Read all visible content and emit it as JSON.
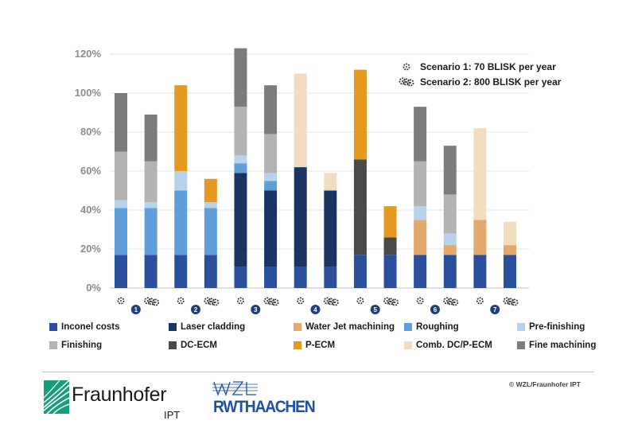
{
  "chart_data": {
    "type": "bar",
    "stacked": true,
    "yaxis": {
      "min": 0,
      "max": 120,
      "ticks": [
        "0%",
        "20%",
        "40%",
        "60%",
        "80%",
        "100%",
        "120%"
      ],
      "tick_values": [
        0,
        20,
        40,
        60,
        80,
        100,
        120
      ]
    },
    "grid": true,
    "groups": [
      {
        "number": "1",
        "bars": [
          "Scenario 1",
          "Scenario 2"
        ]
      },
      {
        "number": "2",
        "bars": [
          "Scenario 1",
          "Scenario 2"
        ]
      },
      {
        "number": "3",
        "bars": [
          "Scenario 1",
          "Scenario 2"
        ]
      },
      {
        "number": "4",
        "bars": [
          "Scenario 1",
          "Scenario 2"
        ]
      },
      {
        "number": "5",
        "bars": [
          "Scenario 1",
          "Scenario 2"
        ]
      },
      {
        "number": "6",
        "bars": [
          "Scenario 1",
          "Scenario 2"
        ]
      },
      {
        "number": "7",
        "bars": [
          "Scenario 1",
          "Scenario 2"
        ]
      }
    ],
    "scenarios": [
      {
        "label": "Scenario 1: 70 BLISK per year"
      },
      {
        "label": "Scenario 2: 800 BLISK per year"
      }
    ],
    "series": [
      {
        "name": "Inconel costs",
        "color": "#2a4f9c",
        "values": [
          17,
          17,
          17,
          17,
          11,
          11,
          11,
          11,
          17,
          17,
          17,
          17,
          17,
          17
        ]
      },
      {
        "name": "Laser cladding",
        "color": "#1a3466",
        "values": [
          0,
          0,
          0,
          0,
          48,
          39,
          51,
          39,
          0,
          0,
          0,
          0,
          0,
          0
        ]
      },
      {
        "name": "Water Jet machining",
        "color": "#e3a86c",
        "values": [
          0,
          0,
          0,
          0,
          0,
          0,
          0,
          0,
          0,
          0,
          18,
          5,
          18,
          5
        ]
      },
      {
        "name": "Roughing",
        "color": "#5e9edb",
        "values": [
          24,
          24,
          33,
          24,
          5,
          5,
          0,
          0,
          0,
          0,
          0,
          0,
          0,
          0
        ]
      },
      {
        "name": "Pre-finishing",
        "color": "#b7d2ec",
        "values": [
          4,
          3,
          10,
          3,
          4,
          4,
          0,
          0,
          0,
          0,
          7,
          6,
          0,
          0
        ]
      },
      {
        "name": "Finishing",
        "color": "#b3b3b3",
        "values": [
          25,
          21,
          0,
          0,
          25,
          20,
          0,
          0,
          0,
          0,
          23,
          20,
          0,
          0
        ]
      },
      {
        "name": "DC-ECM",
        "color": "#4a4a4a",
        "values": [
          0,
          0,
          0,
          0,
          0,
          0,
          0,
          0,
          49,
          9,
          0,
          0,
          0,
          0
        ]
      },
      {
        "name": "P-ECM",
        "color": "#e39a1e",
        "values": [
          0,
          0,
          44,
          12,
          0,
          0,
          0,
          0,
          46,
          16,
          0,
          0,
          0,
          0
        ]
      },
      {
        "name": "Comb. DC/P-ECM",
        "color": "#f2dcbf",
        "values": [
          0,
          0,
          0,
          0,
          0,
          0,
          48,
          9,
          0,
          0,
          0,
          0,
          47,
          12
        ]
      },
      {
        "name": "Fine machining",
        "color": "#7c7c7c",
        "values": [
          30,
          24,
          0,
          0,
          30,
          25,
          0,
          0,
          0,
          0,
          28,
          25,
          0,
          0
        ]
      }
    ],
    "title": "",
    "xlabel": "",
    "ylabel": "",
    "legend": "bottom"
  },
  "footer": {
    "copyright": "© WZL/Fraunhofer IPT",
    "fraunhofer_name": "Fraunhofer",
    "fraunhofer_sub": "IPT",
    "rwth_name": "RWTHAACHEN",
    "rwth_logo_icon": "wzl-logo-icon",
    "fraunhofer_logo_icon": "fraunhofer-wave-logo-icon"
  }
}
